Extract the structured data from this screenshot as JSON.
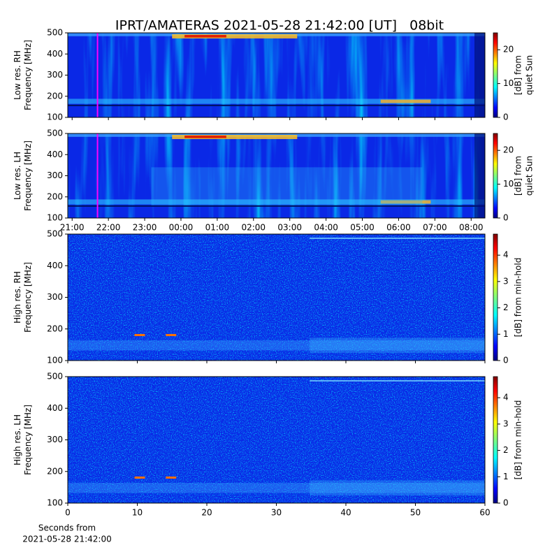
{
  "title": "IPRT/AMATERAS 2021-05-28 21:42:00 [UT]   08bit",
  "chart_data": [
    {
      "type": "heatmap",
      "ylabel": [
        "Low res. RH",
        "Frequency [MHz]"
      ],
      "ylim": [
        100,
        500
      ],
      "yticks": [
        100,
        200,
        300,
        400,
        500
      ],
      "xlim": [
        20.88,
        32.38
      ],
      "xticks": [
        21,
        22,
        23,
        24,
        25,
        26,
        27,
        28,
        29,
        30,
        31,
        32
      ],
      "marker_x": 21.7,
      "marker_color": "#ff00ff",
      "colorbar": {
        "label": [
          "[dB] from",
          "quiet Sun"
        ],
        "lim": [
          0,
          25
        ],
        "ticks": [
          0,
          10,
          20
        ]
      }
    },
    {
      "type": "heatmap",
      "ylabel": [
        "Low res. LH",
        "Frequency [MHz]"
      ],
      "ylim": [
        100,
        500
      ],
      "yticks": [
        100,
        200,
        300,
        400,
        500
      ],
      "xlim": [
        20.88,
        32.38
      ],
      "xticks": [
        {
          "value": 21,
          "label": "21:00"
        },
        {
          "value": 22,
          "label": "22:00"
        },
        {
          "value": 23,
          "label": "23:00"
        },
        {
          "value": 24,
          "label": "00:00"
        },
        {
          "value": 25,
          "label": "01:00"
        },
        {
          "value": 26,
          "label": "02:00"
        },
        {
          "value": 27,
          "label": "03:00"
        },
        {
          "value": 28,
          "label": "04:00"
        },
        {
          "value": 29,
          "label": "05:00"
        },
        {
          "value": 30,
          "label": "06:00"
        },
        {
          "value": 31,
          "label": "07:00"
        },
        {
          "value": 32,
          "label": "08:00"
        }
      ],
      "marker_x": 21.7,
      "marker_color": "#ff00ff",
      "colorbar": {
        "label": [
          "[dB] from",
          "quiet Sun"
        ],
        "lim": [
          0,
          25
        ],
        "ticks": [
          0,
          10,
          20
        ]
      }
    },
    {
      "type": "heatmap",
      "ylabel": [
        "High res. RH",
        "Frequency [MHz]"
      ],
      "ylim": [
        100,
        500
      ],
      "yticks": [
        100,
        200,
        300,
        400,
        500
      ],
      "xlim": [
        0,
        60
      ],
      "xticks": [
        0,
        10,
        20,
        30,
        40,
        50,
        60
      ],
      "colorbar": {
        "label": [
          "[dB] from min-hold"
        ],
        "lim": [
          0,
          4.8
        ],
        "ticks": [
          0,
          1,
          2,
          3,
          4
        ]
      }
    },
    {
      "type": "heatmap",
      "ylabel": [
        "High res. LH",
        "Frequency [MHz]"
      ],
      "ylim": [
        100,
        500
      ],
      "yticks": [
        100,
        200,
        300,
        400,
        500
      ],
      "xlim": [
        0,
        60
      ],
      "xticks": [
        0,
        10,
        20,
        30,
        40,
        50,
        60
      ],
      "xtick_labels": true,
      "xlabel": [
        "Seconds from",
        "2021-05-28 21:42:00"
      ],
      "colorbar": {
        "label": [
          "[dB] from min-hold"
        ],
        "lim": [
          0,
          4.8
        ],
        "ticks": [
          0,
          1,
          2,
          3,
          4
        ]
      }
    }
  ]
}
